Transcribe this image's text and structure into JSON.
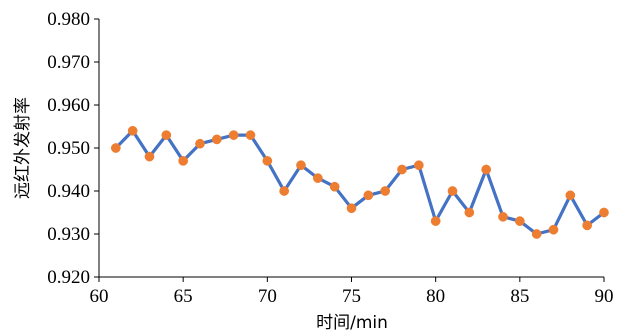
{
  "chart_data": {
    "type": "line",
    "xlabel": "时间/min",
    "ylabel": "远红外发射率",
    "xlim": [
      60,
      90
    ],
    "ylim": [
      0.92,
      0.98
    ],
    "grid": false,
    "x_ticks": [
      "60",
      "65",
      "70",
      "75",
      "80",
      "85",
      "90"
    ],
    "y_ticks": [
      "0.920",
      "0.930",
      "0.940",
      "0.950",
      "0.960",
      "0.970",
      "0.980"
    ],
    "series": [
      {
        "line_color": "#4472C4",
        "marker_color": "#ED7D31",
        "x": [
          61,
          62,
          63,
          64,
          65,
          66,
          67,
          68,
          69,
          70,
          71,
          72,
          73,
          74,
          75,
          76,
          77,
          78,
          79,
          80,
          81,
          82,
          83,
          84,
          85,
          86,
          87,
          88,
          89,
          90
        ],
        "y": [
          0.95,
          0.954,
          0.948,
          0.953,
          0.947,
          0.951,
          0.952,
          0.953,
          0.953,
          0.947,
          0.94,
          0.946,
          0.943,
          0.941,
          0.936,
          0.939,
          0.94,
          0.945,
          0.946,
          0.933,
          0.94,
          0.935,
          0.945,
          0.934,
          0.933,
          0.93,
          0.931,
          0.939,
          0.932,
          0.935
        ]
      }
    ]
  }
}
